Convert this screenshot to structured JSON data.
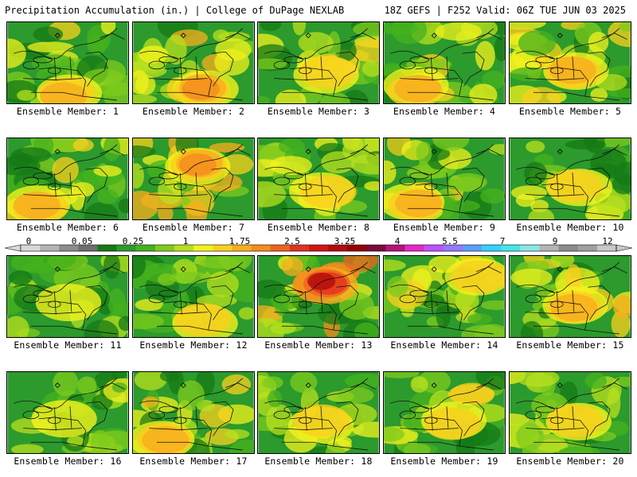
{
  "header": {
    "title_left": "Precipitation Accumulation (in.) | College of DuPage NEXLAB",
    "title_right": "18Z GEFS | F252 Valid: 06Z TUE JUN 03 2025"
  },
  "members": [
    {
      "label": "Ensemble Member: 1",
      "intensity": 0.45,
      "hotspot": "south-wide"
    },
    {
      "label": "Ensemble Member: 2",
      "intensity": 0.6,
      "hotspot": "south-band"
    },
    {
      "label": "Ensemble Member: 3",
      "intensity": 0.4,
      "hotspot": "central"
    },
    {
      "label": "Ensemble Member: 4",
      "intensity": 0.45,
      "hotspot": "southwest"
    },
    {
      "label": "Ensemble Member: 5",
      "intensity": 0.5,
      "hotspot": "central"
    },
    {
      "label": "Ensemble Member: 6",
      "intensity": 0.5,
      "hotspot": "southwest"
    },
    {
      "label": "Ensemble Member: 7",
      "intensity": 0.7,
      "hotspot": "north"
    },
    {
      "label": "Ensemble Member: 8",
      "intensity": 0.35,
      "hotspot": "central"
    },
    {
      "label": "Ensemble Member: 9",
      "intensity": 0.55,
      "hotspot": "southwest"
    },
    {
      "label": "Ensemble Member: 10",
      "intensity": 0.4,
      "hotspot": "central"
    },
    {
      "label": "Ensemble Member: 11",
      "intensity": 0.15,
      "hotspot": "none"
    },
    {
      "label": "Ensemble Member: 12",
      "intensity": 0.25,
      "hotspot": "south-band"
    },
    {
      "label": "Ensemble Member: 13",
      "intensity": 0.85,
      "hotspot": "north"
    },
    {
      "label": "Ensemble Member: 14",
      "intensity": 0.4,
      "hotspot": "northeast"
    },
    {
      "label": "Ensemble Member: 15",
      "intensity": 0.55,
      "hotspot": "central"
    },
    {
      "label": "Ensemble Member: 16",
      "intensity": 0.2,
      "hotspot": "none"
    },
    {
      "label": "Ensemble Member: 17",
      "intensity": 0.55,
      "hotspot": "southwest"
    },
    {
      "label": "Ensemble Member: 18",
      "intensity": 0.3,
      "hotspot": "central"
    },
    {
      "label": "Ensemble Member: 19",
      "intensity": 0.4,
      "hotspot": "central"
    },
    {
      "label": "Ensemble Member: 20",
      "intensity": 0.3,
      "hotspot": "central"
    }
  ],
  "colorbar": {
    "labels": [
      "0",
      "0.05",
      "0.25",
      "1",
      "1.75",
      "2.5",
      "3.25",
      "4",
      "5.5",
      "7",
      "9",
      "12"
    ],
    "colors": [
      "#d8d8d8",
      "#b4b4b4",
      "#8c8c8c",
      "#6e6e6e",
      "#157a15",
      "#2c9a2c",
      "#46b21e",
      "#7ecb1e",
      "#b8e01e",
      "#f2f21e",
      "#fad01e",
      "#f9ad1e",
      "#f48c1e",
      "#ee641e",
      "#e2321e",
      "#d21414",
      "#b40a0a",
      "#960000",
      "#7a0a3c",
      "#b41478",
      "#e628c8",
      "#be50ff",
      "#9678ff",
      "#5aa0ff",
      "#32d2ff",
      "#46e6e6",
      "#8ce6e6",
      "#b4b4b4",
      "#8c8c8c",
      "#a0a0a0",
      "#c8c8c8"
    ]
  }
}
